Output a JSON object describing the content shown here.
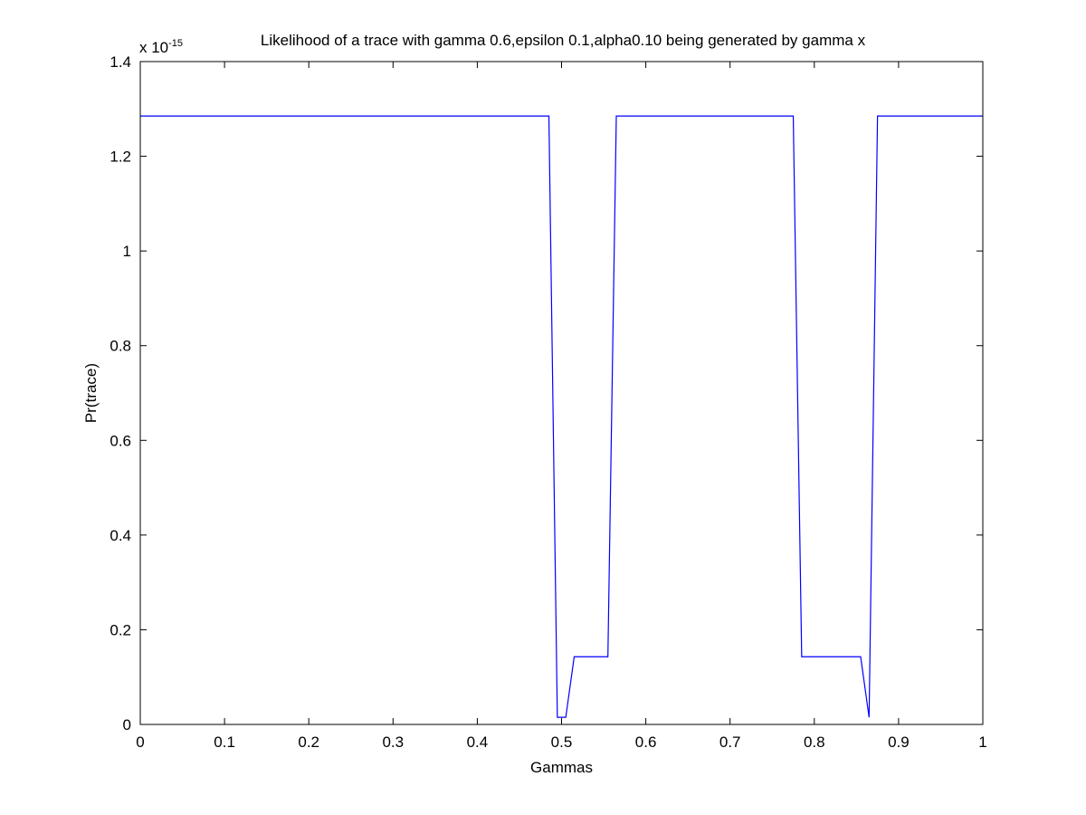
{
  "chart_data": {
    "type": "line",
    "title": "Likelihood of a trace with gamma 0.6,epsilon 0.1,alpha0.10 being generated by gamma x",
    "exponent_label": {
      "base": "x 10",
      "exponent": "-15"
    },
    "xlabel": "Gammas",
    "ylabel": "Pr(trace)",
    "xlim": [
      0,
      1
    ],
    "ylim": [
      0,
      1.4
    ],
    "xticks": [
      0,
      0.1,
      0.2,
      0.3,
      0.4,
      0.5,
      0.6,
      0.7,
      0.8,
      0.9,
      1
    ],
    "xtick_labels": [
      "0",
      "0.1",
      "0.2",
      "0.3",
      "0.4",
      "0.5",
      "0.6",
      "0.7",
      "0.8",
      "0.9",
      "1"
    ],
    "yticks": [
      0,
      0.2,
      0.4,
      0.6,
      0.8,
      1,
      1.2,
      1.4
    ],
    "ytick_labels": [
      "0",
      "0.2",
      "0.4",
      "0.6",
      "0.8",
      "1",
      "1.2",
      "1.4"
    ],
    "grid": false,
    "series": [
      {
        "color": "#0000ff",
        "x": [
          0,
          0.485,
          0.495,
          0.505,
          0.515,
          0.525,
          0.545,
          0.555,
          0.565,
          0.775,
          0.785,
          0.795,
          0.855,
          0.865,
          0.875,
          1
        ],
        "y": [
          1.285,
          1.285,
          0.015,
          0.015,
          0.143,
          0.143,
          0.143,
          0.143,
          1.285,
          1.285,
          0.143,
          0.143,
          0.143,
          0.015,
          1.285,
          1.285
        ]
      }
    ]
  }
}
